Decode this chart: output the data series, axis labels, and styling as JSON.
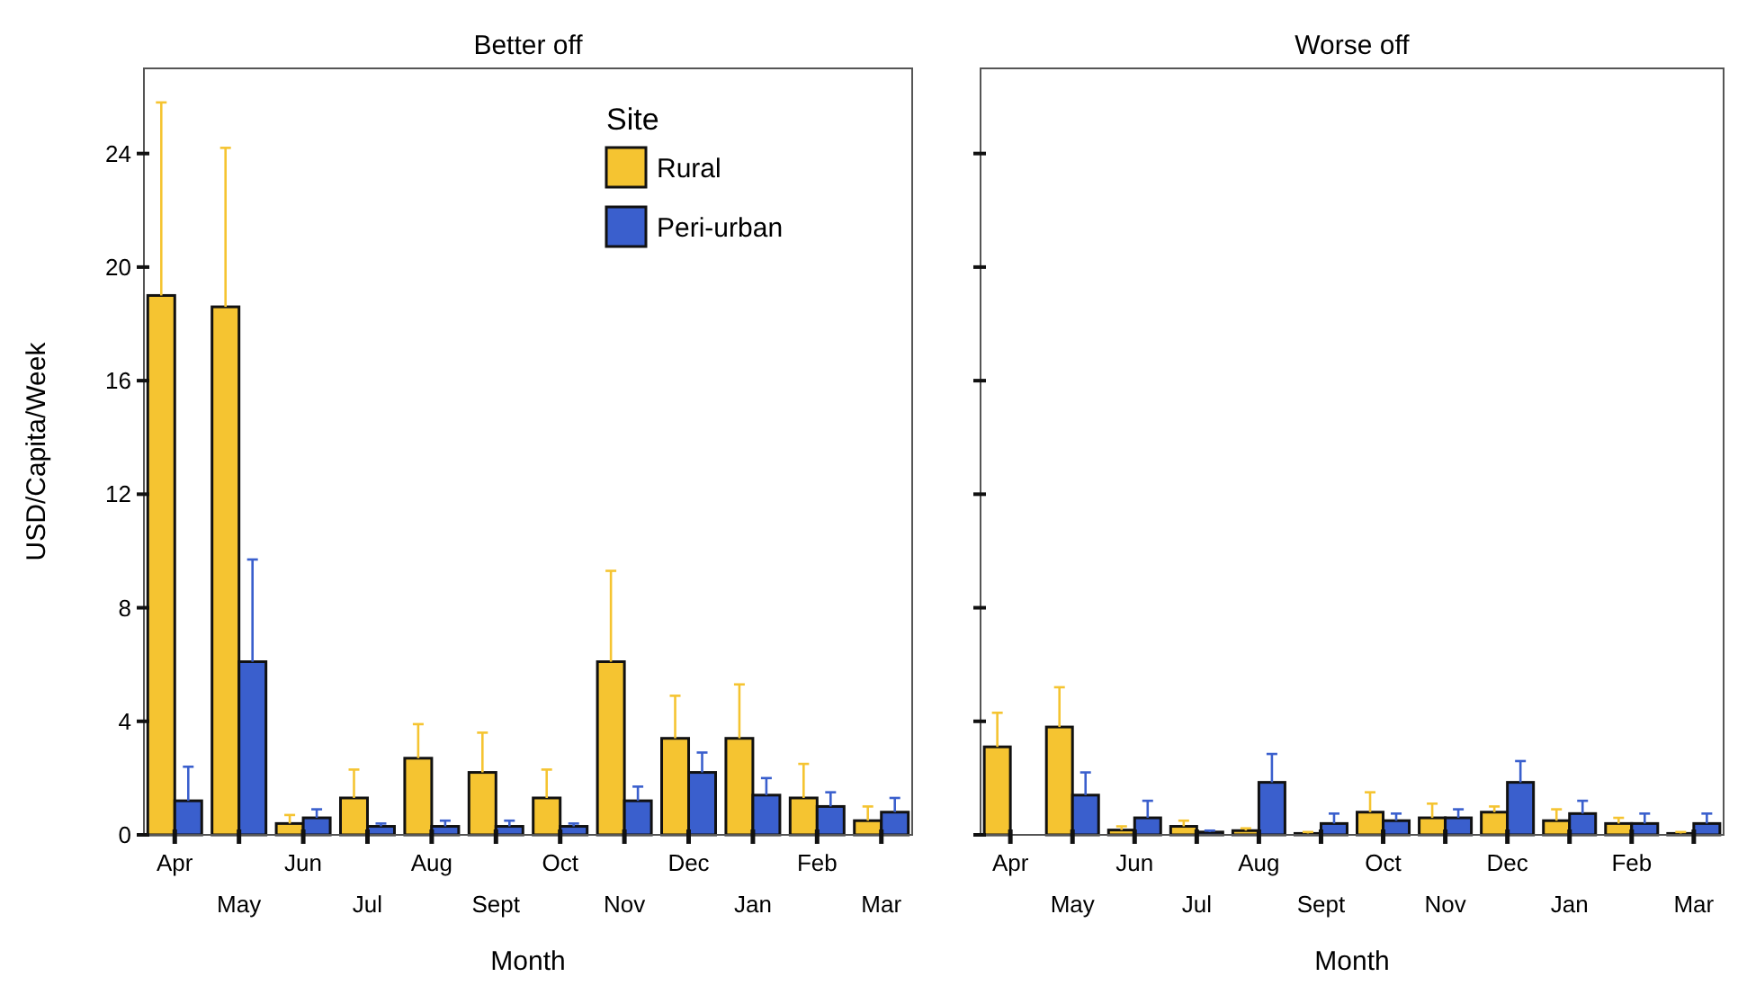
{
  "chart_data": [
    {
      "type": "bar",
      "title": "Better off",
      "xlabel": "Month",
      "ylabel": "USD/Capita/Week",
      "legend_title": "Site",
      "legend": "top right",
      "categories": [
        "Apr",
        "May",
        "Jun",
        "Jul",
        "Aug",
        "Sept",
        "Oct",
        "Nov",
        "Dec",
        "Jan",
        "Feb",
        "Mar"
      ],
      "series": [
        {
          "name": "Rural",
          "color": "#f5c431",
          "values": [
            19.0,
            18.6,
            0.4,
            1.3,
            2.7,
            2.2,
            1.3,
            6.1,
            3.4,
            3.4,
            1.3,
            0.5
          ],
          "errors": [
            [
              19.0,
              25.8
            ],
            [
              18.6,
              24.2
            ],
            [
              0.4,
              0.7
            ],
            [
              1.3,
              2.3
            ],
            [
              2.7,
              3.9
            ],
            [
              2.2,
              3.6
            ],
            [
              1.3,
              2.3
            ],
            [
              6.1,
              9.3
            ],
            [
              3.4,
              4.9
            ],
            [
              3.4,
              5.3
            ],
            [
              1.3,
              2.5
            ],
            [
              0.5,
              1.0
            ]
          ]
        },
        {
          "name": "Peri-urban",
          "color": "#3a5fcd",
          "values": [
            1.2,
            6.1,
            0.6,
            0.3,
            0.3,
            0.3,
            0.3,
            1.2,
            2.2,
            1.4,
            1.0,
            0.8
          ],
          "errors": [
            [
              1.2,
              2.4
            ],
            [
              6.1,
              9.7
            ],
            [
              0.6,
              0.9
            ],
            [
              0.3,
              0.4
            ],
            [
              0.3,
              0.5
            ],
            [
              0.3,
              0.5
            ],
            [
              0.3,
              0.4
            ],
            [
              1.2,
              1.7
            ],
            [
              2.2,
              2.9
            ],
            [
              1.4,
              2.0
            ],
            [
              1.0,
              1.5
            ],
            [
              0.8,
              1.3
            ]
          ]
        }
      ],
      "ylim": [
        0,
        27
      ],
      "yticks": [
        0,
        4,
        8,
        12,
        16,
        20,
        24
      ]
    },
    {
      "type": "bar",
      "title": "Worse off",
      "xlabel": "Month",
      "tick_labels": "x",
      "legend": false,
      "categories": [
        "Apr",
        "May",
        "Jun",
        "Jul",
        "Aug",
        "Sept",
        "Oct",
        "Nov",
        "Dec",
        "Jan",
        "Feb",
        "Mar"
      ],
      "series": [
        {
          "color": "#f5c431",
          "values": [
            3.1,
            3.8,
            0.17,
            0.3,
            0.15,
            0.05,
            0.8,
            0.6,
            0.8,
            0.5,
            0.4,
            0.05
          ],
          "errors": [
            [
              3.1,
              4.3
            ],
            [
              3.8,
              5.2
            ],
            [
              0.17,
              0.3
            ],
            [
              0.3,
              0.5
            ],
            [
              0.15,
              0.23
            ],
            [
              0.05,
              0.1
            ],
            [
              0.8,
              1.5
            ],
            [
              0.6,
              1.1
            ],
            [
              0.8,
              1.0
            ],
            [
              0.5,
              0.9
            ],
            [
              0.4,
              0.6
            ],
            [
              0.05,
              0.1
            ]
          ]
        },
        {
          "color": "#3a5fcd",
          "values": [
            0,
            1.4,
            0.6,
            0.1,
            1.85,
            0.4,
            0.5,
            0.6,
            1.85,
            0.75,
            0.4,
            0.4
          ],
          "errors": [
            null,
            [
              1.4,
              2.2
            ],
            [
              0.6,
              1.2
            ],
            [
              0.1,
              0.15
            ],
            [
              1.85,
              2.85
            ],
            [
              0.4,
              0.75
            ],
            [
              0.5,
              0.75
            ],
            [
              0.6,
              0.9
            ],
            [
              1.85,
              2.6
            ],
            [
              0.75,
              1.2
            ],
            [
              0.4,
              0.75
            ],
            [
              0.4,
              0.75
            ]
          ]
        }
      ],
      "ylim": [
        0,
        27
      ],
      "yticks": [
        0,
        4,
        8,
        12,
        16,
        20,
        24
      ]
    }
  ]
}
